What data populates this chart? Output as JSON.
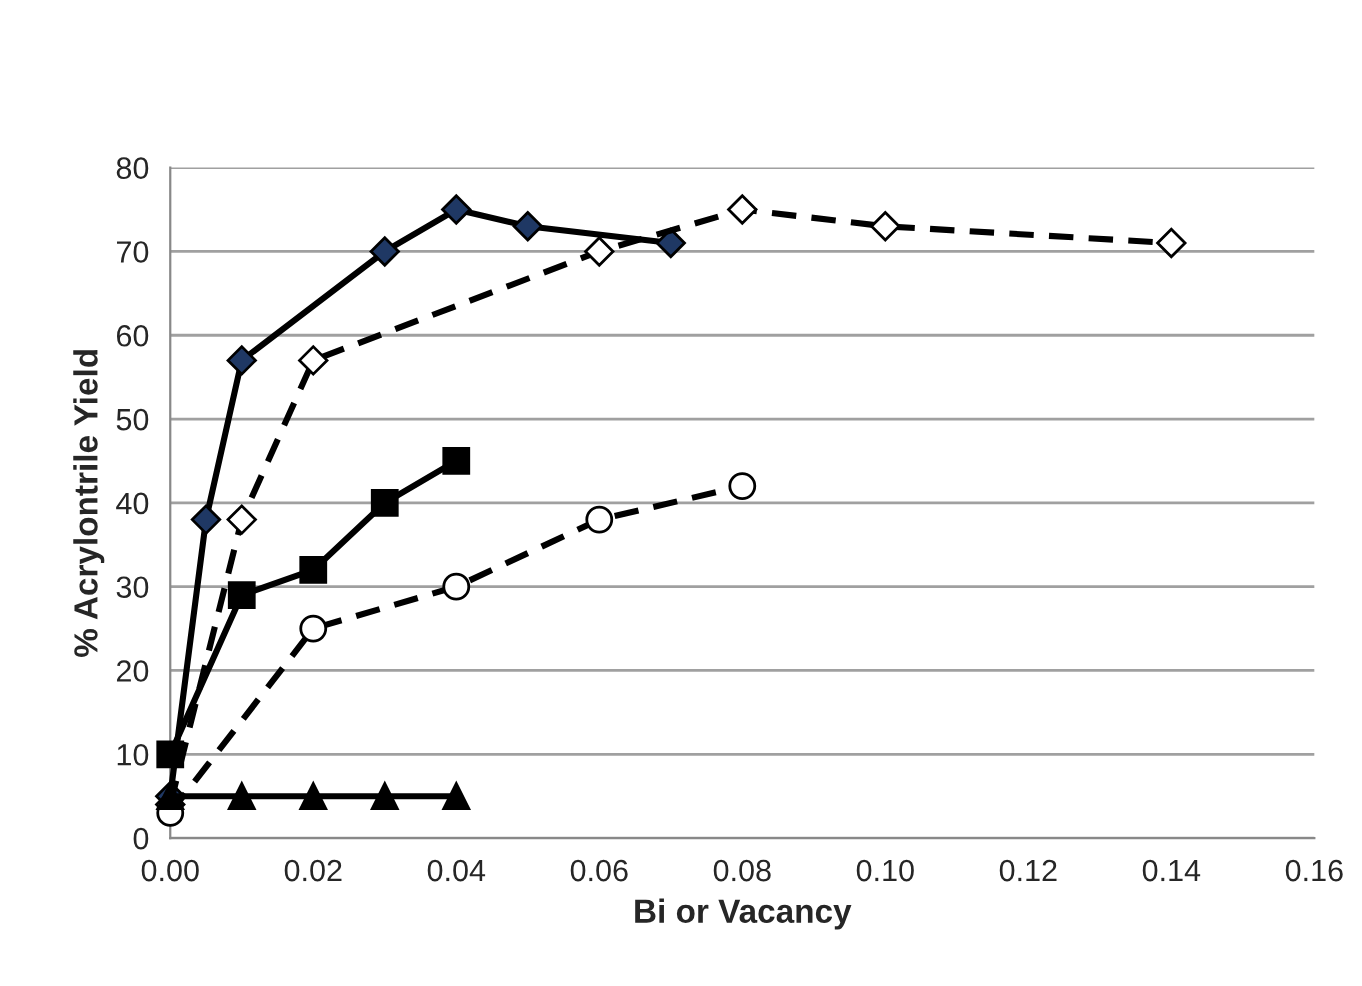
{
  "chart_data": {
    "type": "line",
    "xlabel": "Bi or Vacancy",
    "ylabel": "% Acrylontrile Yield",
    "xlim": [
      0,
      0.16
    ],
    "xticks": [
      {
        "value": 0,
        "label": "0.00"
      },
      {
        "value": 0.02,
        "label": "0.02"
      },
      {
        "value": 0.04,
        "label": "0.04"
      },
      {
        "value": 0.06,
        "label": "0.06"
      },
      {
        "value": 0.08,
        "label": "0.08"
      },
      {
        "value": 0.1,
        "label": "0.10"
      },
      {
        "value": 0.12,
        "label": "0.12"
      },
      {
        "value": 0.14,
        "label": "0.14"
      },
      {
        "value": 0.16,
        "label": "0.16"
      }
    ],
    "ylim": [
      0,
      80
    ],
    "yticks": [
      0,
      10,
      20,
      30,
      40,
      50,
      60,
      70,
      80
    ],
    "grid": "y",
    "series": [
      {
        "x": [
          0,
          0.005,
          0.01,
          0.03,
          0.04,
          0.05,
          0.07
        ],
        "values": [
          5,
          38,
          57,
          70,
          75,
          73,
          71
        ],
        "color": "#1f3864",
        "marker": "diamond",
        "line_style": "solid"
      },
      {
        "x": [
          0,
          0.01,
          0.02,
          0.06,
          0.08,
          0.1,
          0.14
        ],
        "values": [
          4,
          38,
          57,
          70,
          75,
          73,
          71
        ],
        "color": "#ffffff",
        "marker": "diamond",
        "line_style": "dashed"
      },
      {
        "x": [
          0,
          0.01,
          0.02,
          0.03,
          0.04
        ],
        "values": [
          10,
          29,
          32,
          40,
          45
        ],
        "color": "#000000",
        "marker": "square",
        "line_style": "solid"
      },
      {
        "x": [
          0,
          0.02,
          0.04,
          0.06,
          0.08
        ],
        "values": [
          3,
          25,
          30,
          38,
          42
        ],
        "color": "#ffffff",
        "marker": "circle",
        "line_style": "dashed"
      },
      {
        "x": [
          0,
          0.01,
          0.02,
          0.03,
          0.04
        ],
        "values": [
          5,
          5,
          5,
          5,
          5
        ],
        "color": "#000000",
        "marker": "triangle",
        "line_style": "solid"
      }
    ]
  }
}
